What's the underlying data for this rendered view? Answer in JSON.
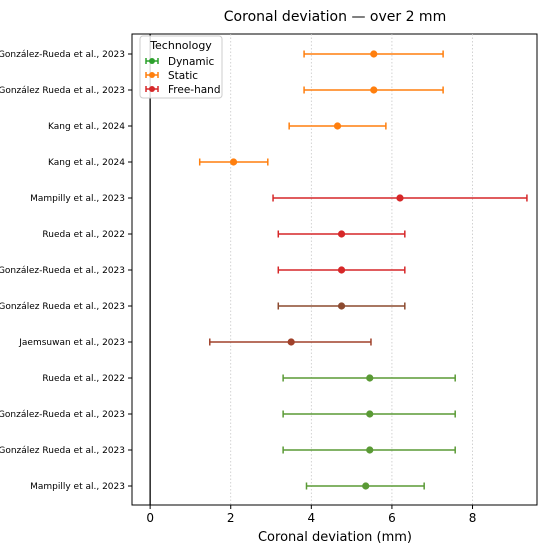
{
  "chart_data": {
    "type": "forest",
    "title": "Coronal deviation — over 2 mm",
    "xlabel": "Coronal deviation (mm)",
    "xlim": [
      -0.45,
      9.6
    ],
    "xticks": [
      0,
      2,
      4,
      6,
      8
    ],
    "grid": "vertical dotted at x ticks",
    "reference_line_x": 0,
    "legend": {
      "title": "Technology",
      "placement": "upper-left",
      "entries": [
        {
          "name": "Dynamic",
          "color": "#2ca02c"
        },
        {
          "name": "Static",
          "color": "#ff7f0e"
        },
        {
          "name": "Free-hand",
          "color": "#d62728"
        }
      ]
    },
    "rows": [
      {
        "label": "González-Rueda et al., 2023",
        "mean": 5.55,
        "low": 3.82,
        "high": 7.27,
        "color": "#ff7f0e"
      },
      {
        "label": "González Rueda et al., 2023",
        "mean": 5.55,
        "low": 3.82,
        "high": 7.27,
        "color": "#ff7f0e"
      },
      {
        "label": "Kang et al., 2024",
        "mean": 4.65,
        "low": 3.45,
        "high": 5.85,
        "color": "#ff7f0e"
      },
      {
        "label": "Kang et al., 2024",
        "mean": 2.07,
        "low": 1.23,
        "high": 2.92,
        "color": "#ff7f0e"
      },
      {
        "label": "Mampilly et al., 2023",
        "mean": 6.2,
        "low": 3.05,
        "high": 9.35,
        "color": "#d62728"
      },
      {
        "label": "Rueda et al., 2022",
        "mean": 4.75,
        "low": 3.18,
        "high": 6.32,
        "color": "#d62728"
      },
      {
        "label": "González-Rueda et al., 2023",
        "mean": 4.75,
        "low": 3.18,
        "high": 6.32,
        "color": "#d62728"
      },
      {
        "label": "González Rueda et al., 2023",
        "mean": 4.75,
        "low": 3.18,
        "high": 6.32,
        "color": "#8c4a2f"
      },
      {
        "label": "Jaemsuwan et al., 2023",
        "mean": 3.5,
        "low": 1.48,
        "high": 5.48,
        "color": "#a0412a"
      },
      {
        "label": "Rueda et al., 2022",
        "mean": 5.45,
        "low": 3.3,
        "high": 7.57,
        "color": "#5a9a35"
      },
      {
        "label": "González-Rueda et al., 2023",
        "mean": 5.45,
        "low": 3.3,
        "high": 7.57,
        "color": "#5a9a35"
      },
      {
        "label": "González Rueda et al., 2023",
        "mean": 5.45,
        "low": 3.3,
        "high": 7.57,
        "color": "#5a9a35"
      },
      {
        "label": "Mampilly et al., 2023",
        "mean": 5.35,
        "low": 3.88,
        "high": 6.8,
        "color": "#5a9a35"
      }
    ]
  }
}
